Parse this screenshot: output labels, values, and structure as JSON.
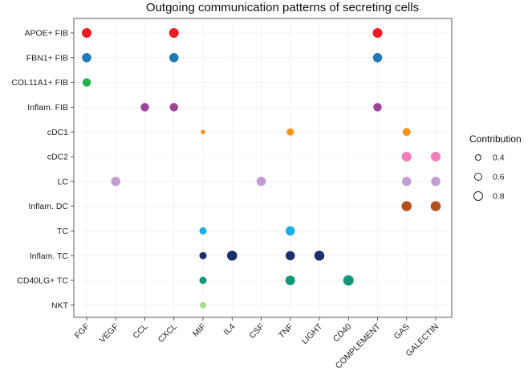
{
  "chart_data": {
    "type": "scatter",
    "title": "Outgoing communication patterns of secreting cells",
    "xlabel": "",
    "ylabel": "",
    "x_categories": [
      "FGF",
      "VEGF",
      "CCL",
      "CXCL",
      "MIF",
      "IL4",
      "CSF",
      "TNF",
      "LIGHT",
      "CD40",
      "COMPLEMENT",
      "GAS",
      "GALECTIN"
    ],
    "y_categories": [
      "APOE+ FIB",
      "FBN1+ FIB",
      "COL11A1+ FIB",
      "Inflam. FIB",
      "cDC1",
      "cDC2",
      "LC",
      "Inflam. DC",
      "TC",
      "Inflam. TC",
      "CD40LG+ TC",
      "NKT"
    ],
    "grid": true,
    "legend": {
      "title": "Contribution",
      "placement": "right",
      "entries": [
        {
          "label": "0.4",
          "value": 0.4
        },
        {
          "label": "0.6",
          "value": 0.6
        },
        {
          "label": "0.8",
          "value": 0.8
        }
      ]
    },
    "size_range": [
      0.2,
      1.0
    ],
    "points": [
      {
        "x": "FGF",
        "y": "APOE+ FIB",
        "contribution": 0.9,
        "color": "#ed1c24"
      },
      {
        "x": "CXCL",
        "y": "APOE+ FIB",
        "contribution": 0.9,
        "color": "#ed1c24"
      },
      {
        "x": "COMPLEMENT",
        "y": "APOE+ FIB",
        "contribution": 0.9,
        "color": "#ed1c24"
      },
      {
        "x": "FGF",
        "y": "FBN1+ FIB",
        "contribution": 0.85,
        "color": "#1f7ab5"
      },
      {
        "x": "CXCL",
        "y": "FBN1+ FIB",
        "contribution": 0.85,
        "color": "#1f7ab5"
      },
      {
        "x": "COMPLEMENT",
        "y": "FBN1+ FIB",
        "contribution": 0.85,
        "color": "#1f7ab5"
      },
      {
        "x": "FGF",
        "y": "COL11A1+ FIB",
        "contribution": 0.75,
        "color": "#21b24b"
      },
      {
        "x": "CCL",
        "y": "Inflam. FIB",
        "contribution": 0.75,
        "color": "#a0449a"
      },
      {
        "x": "CXCL",
        "y": "Inflam. FIB",
        "contribution": 0.75,
        "color": "#a0449a"
      },
      {
        "x": "COMPLEMENT",
        "y": "Inflam. FIB",
        "contribution": 0.75,
        "color": "#a0449a"
      },
      {
        "x": "MIF",
        "y": "cDC1",
        "contribution": 0.25,
        "color": "#f7941d"
      },
      {
        "x": "TNF",
        "y": "cDC1",
        "contribution": 0.6,
        "color": "#f7941d"
      },
      {
        "x": "GAS",
        "y": "cDC1",
        "contribution": 0.7,
        "color": "#f7941d"
      },
      {
        "x": "GAS",
        "y": "cDC2",
        "contribution": 0.9,
        "color": "#f37dbc"
      },
      {
        "x": "GALECTIN",
        "y": "cDC2",
        "contribution": 0.9,
        "color": "#f37dbc"
      },
      {
        "x": "VEGF",
        "y": "LC",
        "contribution": 0.85,
        "color": "#c29bd1"
      },
      {
        "x": "CSF",
        "y": "LC",
        "contribution": 0.85,
        "color": "#c29bd1"
      },
      {
        "x": "GAS",
        "y": "LC",
        "contribution": 0.85,
        "color": "#c29bd1"
      },
      {
        "x": "GALECTIN",
        "y": "LC",
        "contribution": 0.85,
        "color": "#c29bd1"
      },
      {
        "x": "GAS",
        "y": "Inflam. DC",
        "contribution": 0.95,
        "color": "#b5501f"
      },
      {
        "x": "GALECTIN",
        "y": "Inflam. DC",
        "contribution": 0.95,
        "color": "#b5501f"
      },
      {
        "x": "MIF",
        "y": "TC",
        "contribution": 0.6,
        "color": "#1aaee5"
      },
      {
        "x": "TNF",
        "y": "TC",
        "contribution": 0.85,
        "color": "#1aaee5"
      },
      {
        "x": "MIF",
        "y": "Inflam. TC",
        "contribution": 0.6,
        "color": "#1c2f6b"
      },
      {
        "x": "IL4",
        "y": "Inflam. TC",
        "contribution": 0.95,
        "color": "#1c2f6b"
      },
      {
        "x": "TNF",
        "y": "Inflam. TC",
        "contribution": 0.85,
        "color": "#1c2f6b"
      },
      {
        "x": "LIGHT",
        "y": "Inflam. TC",
        "contribution": 0.95,
        "color": "#1c2f6b"
      },
      {
        "x": "MIF",
        "y": "CD40LG+ TC",
        "contribution": 0.6,
        "color": "#14967a"
      },
      {
        "x": "TNF",
        "y": "CD40LG+ TC",
        "contribution": 0.9,
        "color": "#14967a"
      },
      {
        "x": "CD40",
        "y": "CD40LG+ TC",
        "contribution": 1.0,
        "color": "#14967a"
      },
      {
        "x": "MIF",
        "y": "NKT",
        "contribution": 0.5,
        "color": "#a6dd8f"
      }
    ]
  }
}
